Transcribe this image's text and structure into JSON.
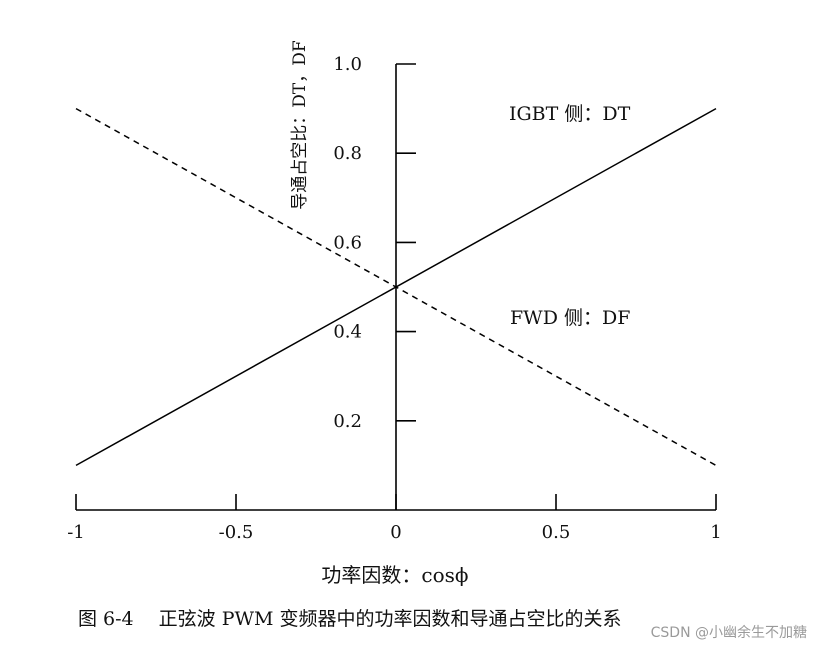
{
  "chart_data": {
    "type": "line",
    "title": "",
    "xlabel": "功率因数：cosϕ",
    "ylabel": "导通占空比：DT，DF",
    "xlim": [
      -1,
      1
    ],
    "ylim": [
      0,
      1.0
    ],
    "x_ticks": [
      -1,
      -0.5,
      0,
      0.5,
      1
    ],
    "x_tick_labels": [
      "-1",
      "-0.5",
      "0",
      "0.5",
      "1"
    ],
    "y_ticks": [
      0.2,
      0.4,
      0.6,
      0.8,
      1.0
    ],
    "y_tick_labels": [
      "0.2",
      "0.4",
      "0.6",
      "0.8",
      "1.0"
    ],
    "grid": false,
    "series": [
      {
        "name": "IGBT 侧：DT",
        "style": "solid",
        "color": "#000000",
        "x": [
          -1,
          1
        ],
        "y": [
          0.1,
          0.9
        ]
      },
      {
        "name": "FWD 侧：DF",
        "style": "dashed",
        "color": "#000000",
        "x": [
          -1,
          1
        ],
        "y": [
          0.9,
          0.1
        ]
      }
    ]
  },
  "caption": "图 6-4　 正弦波 PWM 变频器中的功率因数和导通占空比的关系",
  "watermark": "CSDN @小幽余生不加糖"
}
